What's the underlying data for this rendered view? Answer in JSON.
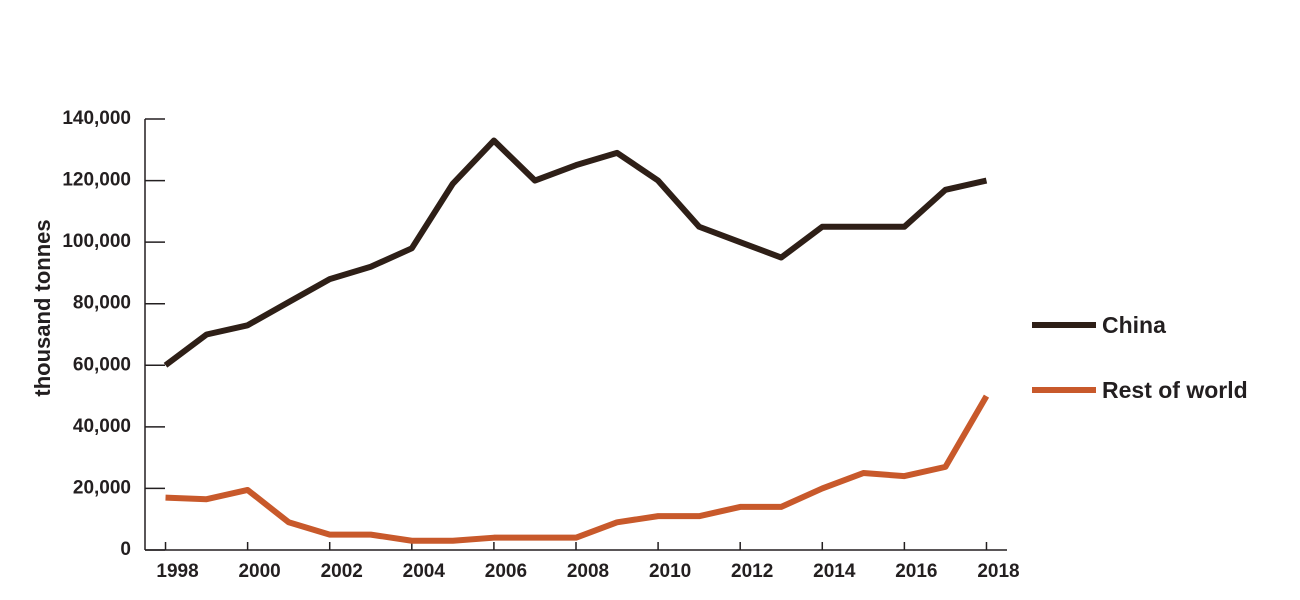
{
  "chart_data": {
    "type": "line",
    "y_label": "thousand tonnes",
    "x": [
      1998,
      1999,
      2000,
      2001,
      2002,
      2003,
      2004,
      2005,
      2006,
      2007,
      2008,
      2009,
      2010,
      2011,
      2012,
      2013,
      2014,
      2015,
      2016,
      2017,
      2018
    ],
    "series": [
      {
        "name": "China",
        "color": "#2e1f17",
        "values": [
          60000,
          70000,
          73000,
          80500,
          88000,
          92000,
          98000,
          119000,
          133000,
          120000,
          125000,
          129000,
          120000,
          105000,
          100000,
          95000,
          105000,
          105000,
          105000,
          117000,
          120000
        ]
      },
      {
        "name": "Rest of world",
        "color": "#c8592b",
        "values": [
          17000,
          16500,
          19500,
          9000,
          5000,
          5000,
          3000,
          3000,
          4000,
          4000,
          4000,
          9000,
          11000,
          11000,
          14000,
          14000,
          20000,
          25000,
          24000,
          27000,
          50000
        ]
      }
    ],
    "xlim": [
      1997.5,
      2018.5
    ],
    "xticks": [
      1998,
      2000,
      2002,
      2004,
      2006,
      2008,
      2010,
      2012,
      2014,
      2016,
      2018
    ],
    "ylim": [
      0,
      140000
    ],
    "yticks": [
      0,
      {
        "value": 20000,
        "label": "20,000"
      },
      {
        "value": 40000,
        "label": "40,000"
      },
      {
        "value": 60000,
        "label": "60,000"
      },
      {
        "value": 80000,
        "label": "80,000"
      },
      {
        "value": 100000,
        "label": "100,000"
      },
      {
        "value": 120000,
        "label": "120,000"
      },
      {
        "value": 140000,
        "label": "140,000"
      }
    ],
    "legend": "right"
  }
}
